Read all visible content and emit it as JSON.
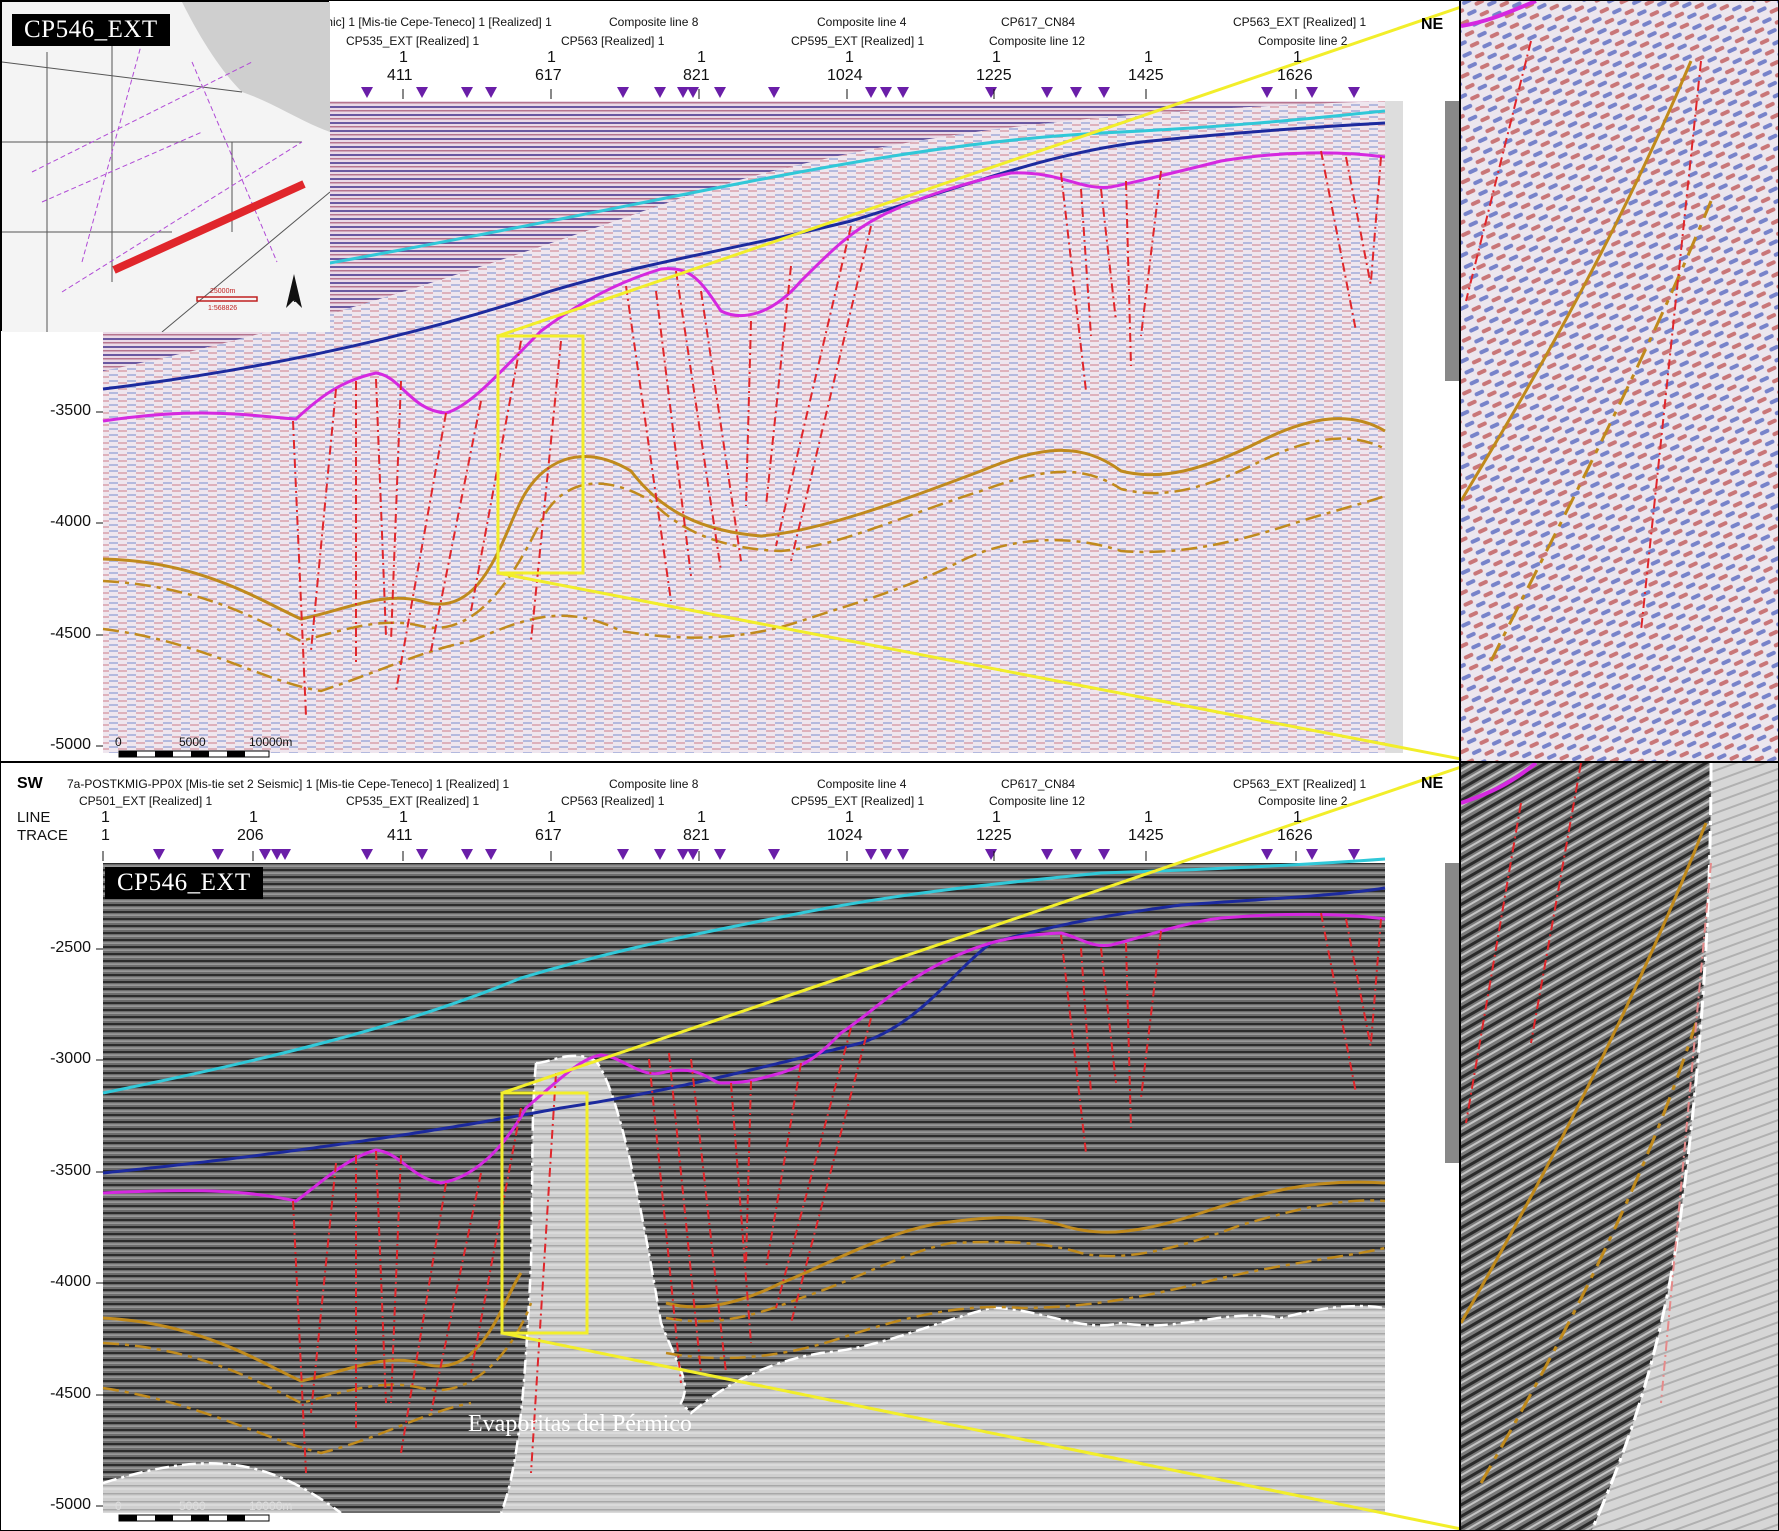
{
  "panels": {
    "top": {
      "name": "CP546_EXT"
    },
    "bottom": {
      "name": "CP546_EXT",
      "annotation": "Evaporitas del Pérmico"
    }
  },
  "header": {
    "sw": "SW",
    "ne": "NE",
    "line_label": "LINE",
    "trace_label": "TRACE",
    "row1": [
      "7a-POSTKMIG-PP0X [Mis-tie set 2 Seismic] 1 [Mis-tie Cepe-Teneco] 1 [Realized] 1",
      "Composite line 8",
      "Composite line 4",
      "CP617_CN84",
      "CP563_EXT [Realized] 1"
    ],
    "row1_top_partial": "mic] 1 [Mis-tie Cepe-Teneco] 1 [Realized] 1",
    "row2": [
      "CP501_EXT [Realized] 1",
      "CP535_EXT [Realized] 1",
      "CP563 [Realized] 1",
      "CP595_EXT [Realized] 1",
      "Composite line 12",
      "Composite line 2"
    ],
    "line_values": [
      "1",
      "1",
      "1",
      "1",
      "1",
      "1",
      "1",
      "1",
      "1"
    ],
    "traces": [
      "1",
      "206",
      "411",
      "617",
      "821",
      "1024",
      "1225",
      "1425",
      "1626"
    ]
  },
  "depth_top": [
    "-3500",
    "-4000",
    "-4500",
    "-5000"
  ],
  "depth_bottom": [
    "-2500",
    "-3000",
    "-3500",
    "-4000",
    "-4500",
    "-5000"
  ],
  "scalebar": {
    "labels": [
      "0",
      "5000",
      "10000m"
    ]
  },
  "inset_map": {
    "scale_text": "25000m",
    "ratio_text": "1:568826",
    "north": "N"
  },
  "colors": {
    "fault": "#e0262b",
    "horizon_cyan": "#30c8d8",
    "horizon_blue": "#1c2a9e",
    "horizon_magenta": "#d528e0",
    "horizon_gold": "#c08a1c",
    "zoom_box": "#f2ee2a",
    "well_marker": "#6a1ea8"
  }
}
